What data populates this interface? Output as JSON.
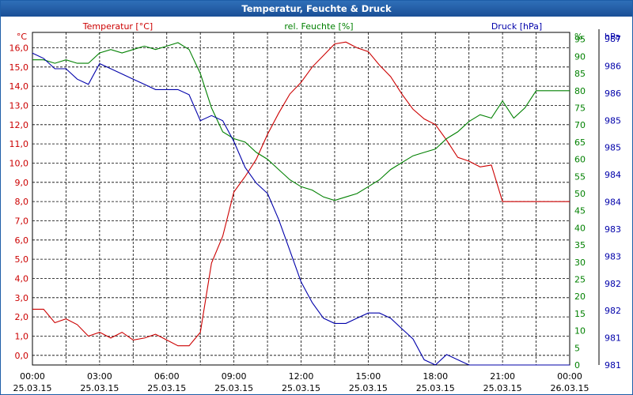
{
  "window": {
    "title": "Temperatur, Feuchte & Druck"
  },
  "legend": {
    "temperature": "Temperatur [°C]",
    "humidity": "rel. Feuchte [%]",
    "pressure": "Druck [hPa]"
  },
  "colors": {
    "temperature": "#cc0000",
    "humidity": "#008000",
    "pressure": "#0000aa",
    "grid": "#000000",
    "titlebar": "#1e5ea8"
  },
  "chart_data": {
    "type": "line",
    "title": "Temperatur, Feuchte & Druck",
    "x_tick_labels": [
      {
        "time": "00:00",
        "date": "25.03.15"
      },
      {
        "time": "03:00",
        "date": "25.03.15"
      },
      {
        "time": "06:00",
        "date": "25.03.15"
      },
      {
        "time": "09:00",
        "date": "25.03.15"
      },
      {
        "time": "12:00",
        "date": "25.03.15"
      },
      {
        "time": "15:00",
        "date": "25.03.15"
      },
      {
        "time": "18:00",
        "date": "25.03.15"
      },
      {
        "time": "21:00",
        "date": "25.03.15"
      },
      {
        "time": "00:00",
        "date": "26.03.15"
      }
    ],
    "x_range_hours": [
      0,
      24
    ],
    "left_axis": {
      "unit": "°C",
      "range": [
        -0.5,
        16.8
      ],
      "tick_values": [
        0,
        1,
        2,
        3,
        4,
        5,
        6,
        7,
        8,
        9,
        10,
        11,
        12,
        13,
        14,
        15,
        16
      ],
      "tick_labels": [
        "0,0",
        "1,0",
        "2,0",
        "3,0",
        "4,0",
        "5,0",
        "6,0",
        "7,0",
        "8,0",
        "9,0",
        "10,0",
        "11,0",
        "12,0",
        "13,0",
        "14,0",
        "15,0",
        "16,0"
      ]
    },
    "right_axis_1": {
      "unit": "%",
      "range": [
        0,
        97
      ],
      "tick_labels": [
        "0",
        "5",
        "10",
        "15",
        "20",
        "25",
        "30",
        "35",
        "40",
        "45",
        "50",
        "55",
        "60",
        "65",
        "70",
        "75",
        "80",
        "85",
        "90",
        "95"
      ]
    },
    "right_axis_2": {
      "unit": "hPa",
      "range": [
        980.8,
        987.2
      ],
      "tick_labels": [
        "981",
        "981",
        "982",
        "982",
        "983",
        "983",
        "984",
        "984",
        "985",
        "985",
        "986",
        "986",
        "987"
      ]
    },
    "series": [
      {
        "name": "Temperatur [°C]",
        "axis": "left",
        "x": [
          0,
          0.5,
          1,
          1.5,
          2,
          2.5,
          3,
          3.5,
          4,
          4.5,
          5,
          5.5,
          6,
          6.5,
          7,
          7.5,
          8,
          8.5,
          9,
          9.5,
          10,
          10.5,
          11,
          11.5,
          12,
          12.5,
          13,
          13.5,
          14,
          14.5,
          15,
          15.5,
          16,
          16.5,
          17,
          17.5,
          18,
          18.5,
          19,
          19.5,
          20,
          20.5,
          21,
          21.5,
          22,
          22.5,
          23,
          23.5,
          24
        ],
        "y": [
          2.4,
          2.4,
          1.7,
          1.9,
          1.6,
          1.0,
          1.2,
          0.9,
          1.2,
          0.8,
          0.9,
          1.1,
          0.8,
          0.5,
          0.5,
          1.2,
          4.8,
          6.2,
          8.5,
          9.3,
          10.2,
          11.5,
          12.6,
          13.6,
          14.2,
          15.0,
          15.6,
          16.2,
          16.3,
          16.0,
          15.8,
          15.1,
          14.5,
          13.6,
          12.8,
          12.3,
          12.0,
          11.2,
          10.3,
          10.1,
          9.8,
          9.9,
          8.0,
          8.0,
          8.0,
          8.0,
          8.0,
          8.0,
          8.0
        ]
      },
      {
        "name": "rel. Feuchte [%]",
        "axis": "right1",
        "x": [
          0,
          0.5,
          1,
          1.5,
          2,
          2.5,
          3,
          3.5,
          4,
          4.5,
          5,
          5.5,
          6,
          6.5,
          7,
          7.5,
          8,
          8.5,
          9,
          9.5,
          10,
          10.5,
          11,
          11.5,
          12,
          12.5,
          13,
          13.5,
          14,
          14.5,
          15,
          15.5,
          16,
          16.5,
          17,
          17.5,
          18,
          18.5,
          19,
          19.5,
          20,
          20.5,
          21,
          21.5,
          22,
          22.5,
          23,
          23.5,
          24
        ],
        "y": [
          89,
          89,
          88,
          89,
          88,
          88,
          91,
          92,
          91,
          92,
          93,
          92,
          93,
          94,
          92,
          85,
          75,
          68,
          66,
          65,
          62,
          60,
          57,
          54,
          52,
          51,
          49,
          48,
          49,
          50,
          52,
          54,
          57,
          59,
          61,
          62,
          63,
          66,
          68,
          71,
          73,
          72,
          77,
          72,
          75,
          80,
          80,
          80,
          80
        ]
      },
      {
        "name": "Druck [hPa]",
        "axis": "right2",
        "x": [
          0,
          0.5,
          1,
          1.5,
          2,
          2.5,
          3,
          3.5,
          4,
          4.5,
          5,
          5.5,
          6,
          6.5,
          7,
          7.5,
          8,
          8.5,
          9,
          9.5,
          10,
          10.5,
          11,
          11.5,
          12,
          12.5,
          13,
          13.5,
          14,
          14.5,
          15,
          15.5,
          16,
          16.5,
          17,
          17.5,
          18,
          18.5,
          19,
          19.5,
          20,
          20.5,
          21,
          21.5,
          22,
          22.5,
          23,
          23.5,
          24
        ],
        "y": [
          986.8,
          986.7,
          986.5,
          986.5,
          986.3,
          986.2,
          986.6,
          986.5,
          986.4,
          986.3,
          986.2,
          986.1,
          986.1,
          986.1,
          986.0,
          985.5,
          985.6,
          985.5,
          985.1,
          984.6,
          984.3,
          984.1,
          983.6,
          983.0,
          982.4,
          982.0,
          981.7,
          981.6,
          981.6,
          981.7,
          981.8,
          981.8,
          981.7,
          981.5,
          981.3,
          980.9,
          980.8,
          981.0,
          980.9,
          980.8,
          980.8,
          980.8,
          980.8,
          980.8,
          980.8,
          980.8,
          980.8,
          980.8,
          980.8
        ]
      }
    ]
  }
}
